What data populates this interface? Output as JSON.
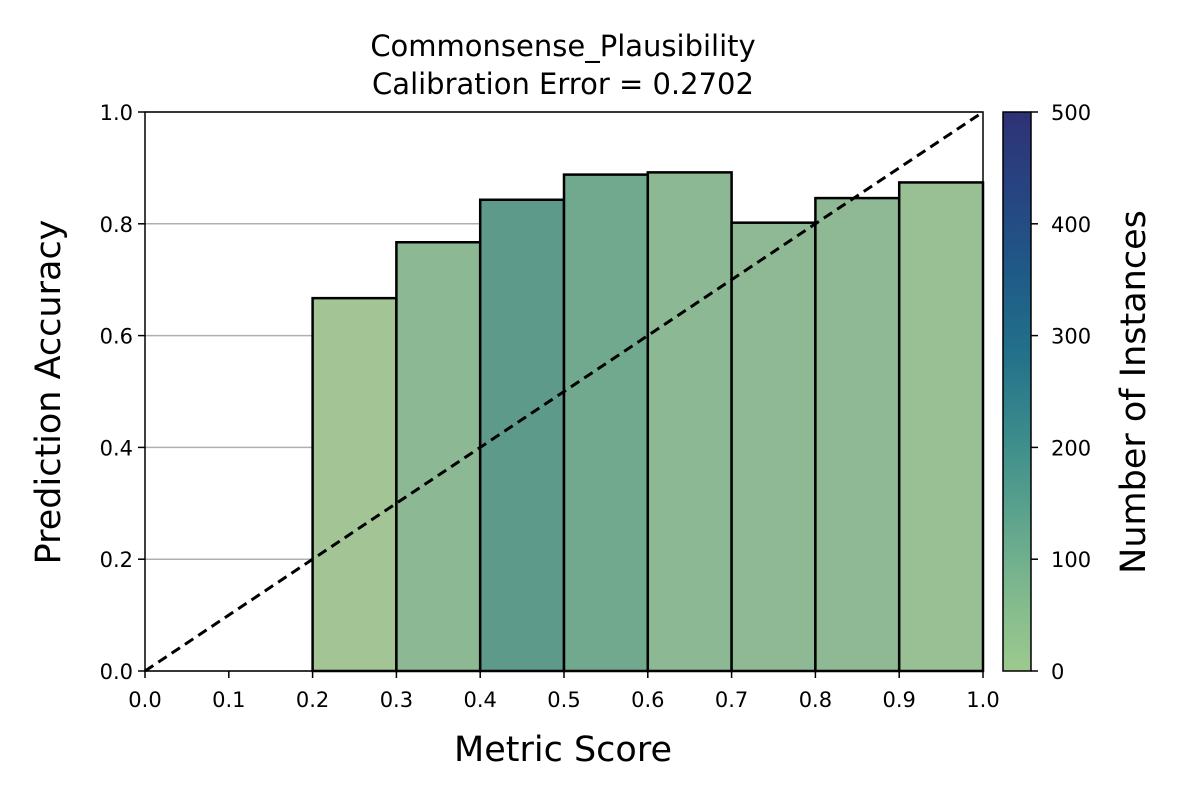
{
  "chart_data": {
    "type": "bar",
    "title": "Commonsense_Plausibility",
    "subtitle": "Calibration Error = 0.2702",
    "xlabel": "Metric Score",
    "ylabel": "Prediction Accuracy",
    "xlim": [
      0.0,
      1.0
    ],
    "ylim": [
      0.0,
      1.0
    ],
    "x_ticks": [
      "0.0",
      "0.1",
      "0.2",
      "0.3",
      "0.4",
      "0.5",
      "0.6",
      "0.7",
      "0.8",
      "0.9",
      "1.0"
    ],
    "y_ticks": [
      "0.0",
      "0.2",
      "0.4",
      "0.6",
      "0.8",
      "1.0"
    ],
    "grid": "horizontal",
    "reference_line": {
      "style": "dashed",
      "color": "#000000",
      "from": [
        0.0,
        0.0
      ],
      "to": [
        1.0,
        1.0
      ]
    },
    "bins": [
      {
        "x0": 0.2,
        "x1": 0.3,
        "accuracy": 0.667,
        "color": "#a3c596"
      },
      {
        "x0": 0.3,
        "x1": 0.4,
        "accuracy": 0.767,
        "color": "#8db894"
      },
      {
        "x0": 0.4,
        "x1": 0.5,
        "accuracy": 0.843,
        "color": "#5e9a8a"
      },
      {
        "x0": 0.5,
        "x1": 0.6,
        "accuracy": 0.888,
        "color": "#71a98f"
      },
      {
        "x0": 0.6,
        "x1": 0.7,
        "accuracy": 0.892,
        "color": "#8db894"
      },
      {
        "x0": 0.7,
        "x1": 0.8,
        "accuracy": 0.802,
        "color": "#8fb994"
      },
      {
        "x0": 0.8,
        "x1": 0.9,
        "accuracy": 0.846,
        "color": "#8fb994"
      },
      {
        "x0": 0.9,
        "x1": 1.0,
        "accuracy": 0.874,
        "color": "#99bf95"
      }
    ],
    "colorbar": {
      "label": "Number of Instances",
      "range": [
        0,
        500
      ],
      "ticks": [
        "0",
        "100",
        "200",
        "300",
        "400",
        "500"
      ],
      "colors": [
        "#9dc98e",
        "#7fb88e",
        "#5aa28d",
        "#3a8a8c",
        "#22708a",
        "#1f5a87",
        "#274482",
        "#2e3275"
      ]
    }
  }
}
